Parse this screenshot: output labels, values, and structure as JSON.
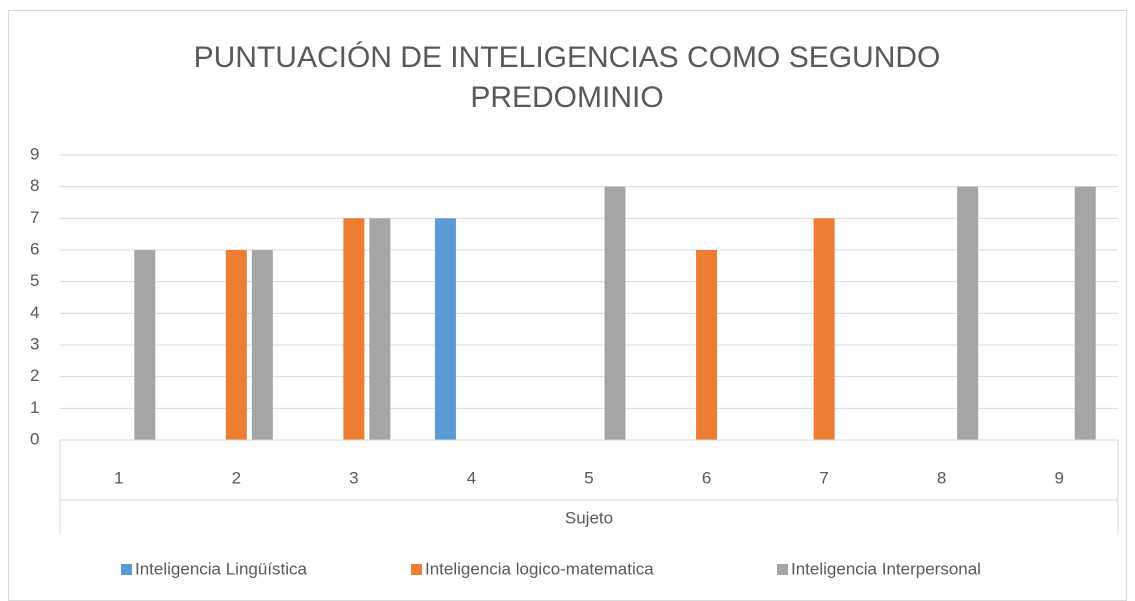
{
  "chart_data": {
    "type": "bar",
    "title": "PUNTUACIÓN DE INTELIGENCIAS COMO SEGUNDO PREDOMINIO",
    "x_label": "Sujeto",
    "categories": [
      "1",
      "2",
      "3",
      "4",
      "5",
      "6",
      "7",
      "8",
      "9"
    ],
    "series": [
      {
        "name": "Inteligencia Lingüística",
        "color": "#5b9bd5",
        "values": [
          null,
          null,
          null,
          7,
          null,
          null,
          null,
          null,
          null
        ]
      },
      {
        "name": "Inteligencia logico-matematica",
        "color": "#ed7d31",
        "values": [
          null,
          6,
          7,
          null,
          null,
          6,
          7,
          null,
          null
        ]
      },
      {
        "name": "Inteligencia Interpersonal",
        "color": "#a5a5a5",
        "values": [
          6,
          6,
          7,
          null,
          8,
          null,
          null,
          8,
          8
        ]
      }
    ],
    "ylim": [
      0,
      9
    ],
    "yticks": [
      0,
      1,
      2,
      3,
      4,
      5,
      6,
      7,
      8,
      9
    ],
    "grid": true,
    "legend": "bottom"
  }
}
